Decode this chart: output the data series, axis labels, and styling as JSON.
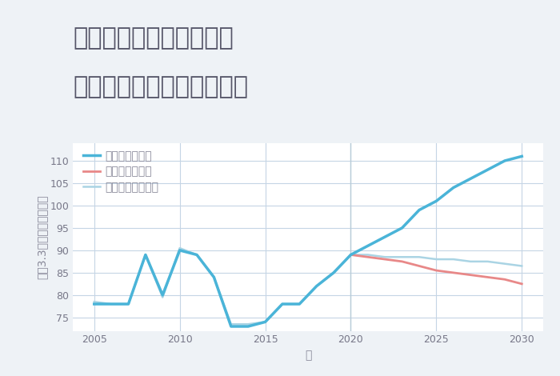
{
  "title_line1": "千葉県市原市辰巳台西の",
  "title_line2": "中古マンションの価格推移",
  "xlabel": "年",
  "ylabel_parts": [
    "坪（3.3㎡）単価（万円）"
  ],
  "background_color": "#eef2f6",
  "plot_bg_color": "#ffffff",
  "grid_color": "#c5d5e5",
  "title_color": "#555568",
  "axis_color": "#888899",
  "tick_color": "#777788",
  "ylim": [
    72,
    114
  ],
  "yticks": [
    75,
    80,
    85,
    90,
    95,
    100,
    105,
    110
  ],
  "xticks": [
    2005,
    2010,
    2015,
    2020,
    2025,
    2030
  ],
  "good_scenario": {
    "x": [
      2005,
      2006,
      2007,
      2008,
      2009,
      2010,
      2011,
      2012,
      2013,
      2014,
      2015,
      2016,
      2017,
      2018,
      2019,
      2020,
      2021,
      2022,
      2023,
      2024,
      2025,
      2026,
      2027,
      2028,
      2029,
      2030
    ],
    "y": [
      78,
      78,
      78,
      89,
      80,
      90,
      89,
      84,
      73,
      73,
      74,
      78,
      78,
      82,
      85,
      89,
      91,
      93,
      95,
      99,
      101,
      104,
      106,
      108,
      110,
      111
    ],
    "color": "#4ab4d8",
    "linewidth": 2.5,
    "label": "グッドシナリオ"
  },
  "bad_scenario": {
    "x": [
      2020,
      2021,
      2022,
      2023,
      2024,
      2025,
      2026,
      2027,
      2028,
      2029,
      2030
    ],
    "y": [
      89,
      88.5,
      88,
      87.5,
      86.5,
      85.5,
      85,
      84.5,
      84,
      83.5,
      82.5
    ],
    "color": "#e88888",
    "linewidth": 2.0,
    "label": "バッドシナリオ"
  },
  "normal_scenario": {
    "x": [
      2005,
      2006,
      2007,
      2008,
      2009,
      2010,
      2011,
      2012,
      2013,
      2014,
      2015,
      2016,
      2017,
      2018,
      2019,
      2020,
      2021,
      2022,
      2023,
      2024,
      2025,
      2026,
      2027,
      2028,
      2029,
      2030
    ],
    "y": [
      78.5,
      78.0,
      78.0,
      89,
      79.5,
      90.5,
      89,
      84,
      73.5,
      73.5,
      74,
      78,
      78,
      82,
      85,
      89,
      89,
      88.5,
      88.5,
      88.5,
      88,
      88,
      87.5,
      87.5,
      87,
      86.5
    ],
    "color": "#aad4e4",
    "linewidth": 1.8,
    "label": "ノーマルシナリオ"
  },
  "vline_x": [
    2020
  ],
  "vline_color": "#b8ccd8",
  "legend_fontsize": 10,
  "title_fontsize": 22,
  "axis_label_fontsize": 10,
  "tick_fontsize": 9
}
